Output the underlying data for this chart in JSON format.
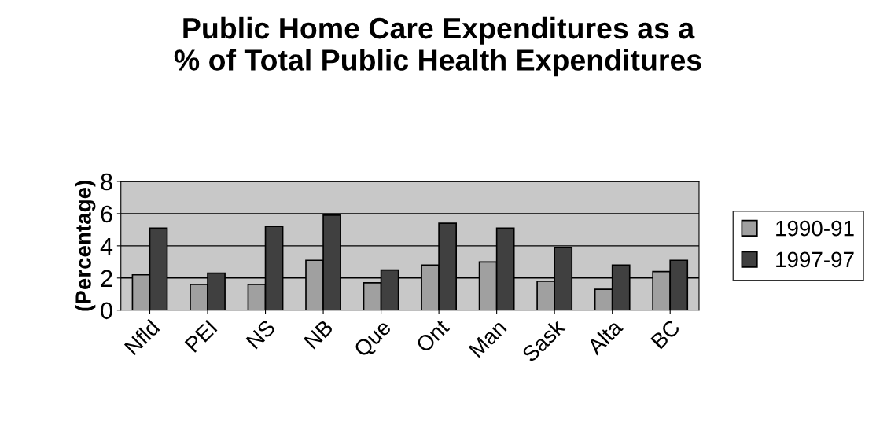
{
  "chart_data": {
    "type": "bar",
    "title": "Public Home Care Expenditures as a\n% of Total Public Health Expenditures",
    "ylabel": "(Percentage)",
    "categories": [
      "Nfld",
      "PEI",
      "NS",
      "NB",
      "Que",
      "Ont",
      "Man",
      "Sask",
      "Alta",
      "BC"
    ],
    "series": [
      {
        "name": "1990-91",
        "color": "#a0a0a0",
        "values": [
          2.2,
          1.6,
          1.6,
          3.1,
          1.7,
          2.8,
          3.0,
          1.8,
          1.3,
          2.4
        ]
      },
      {
        "name": "1997-97",
        "color": "#404040",
        "values": [
          5.1,
          2.3,
          5.2,
          5.9,
          2.5,
          5.4,
          5.1,
          3.9,
          2.8,
          3.1
        ]
      }
    ],
    "ylim": [
      0,
      8
    ],
    "yticks": [
      0,
      2,
      4,
      6,
      8
    ],
    "grid": "y",
    "legend": "right"
  }
}
